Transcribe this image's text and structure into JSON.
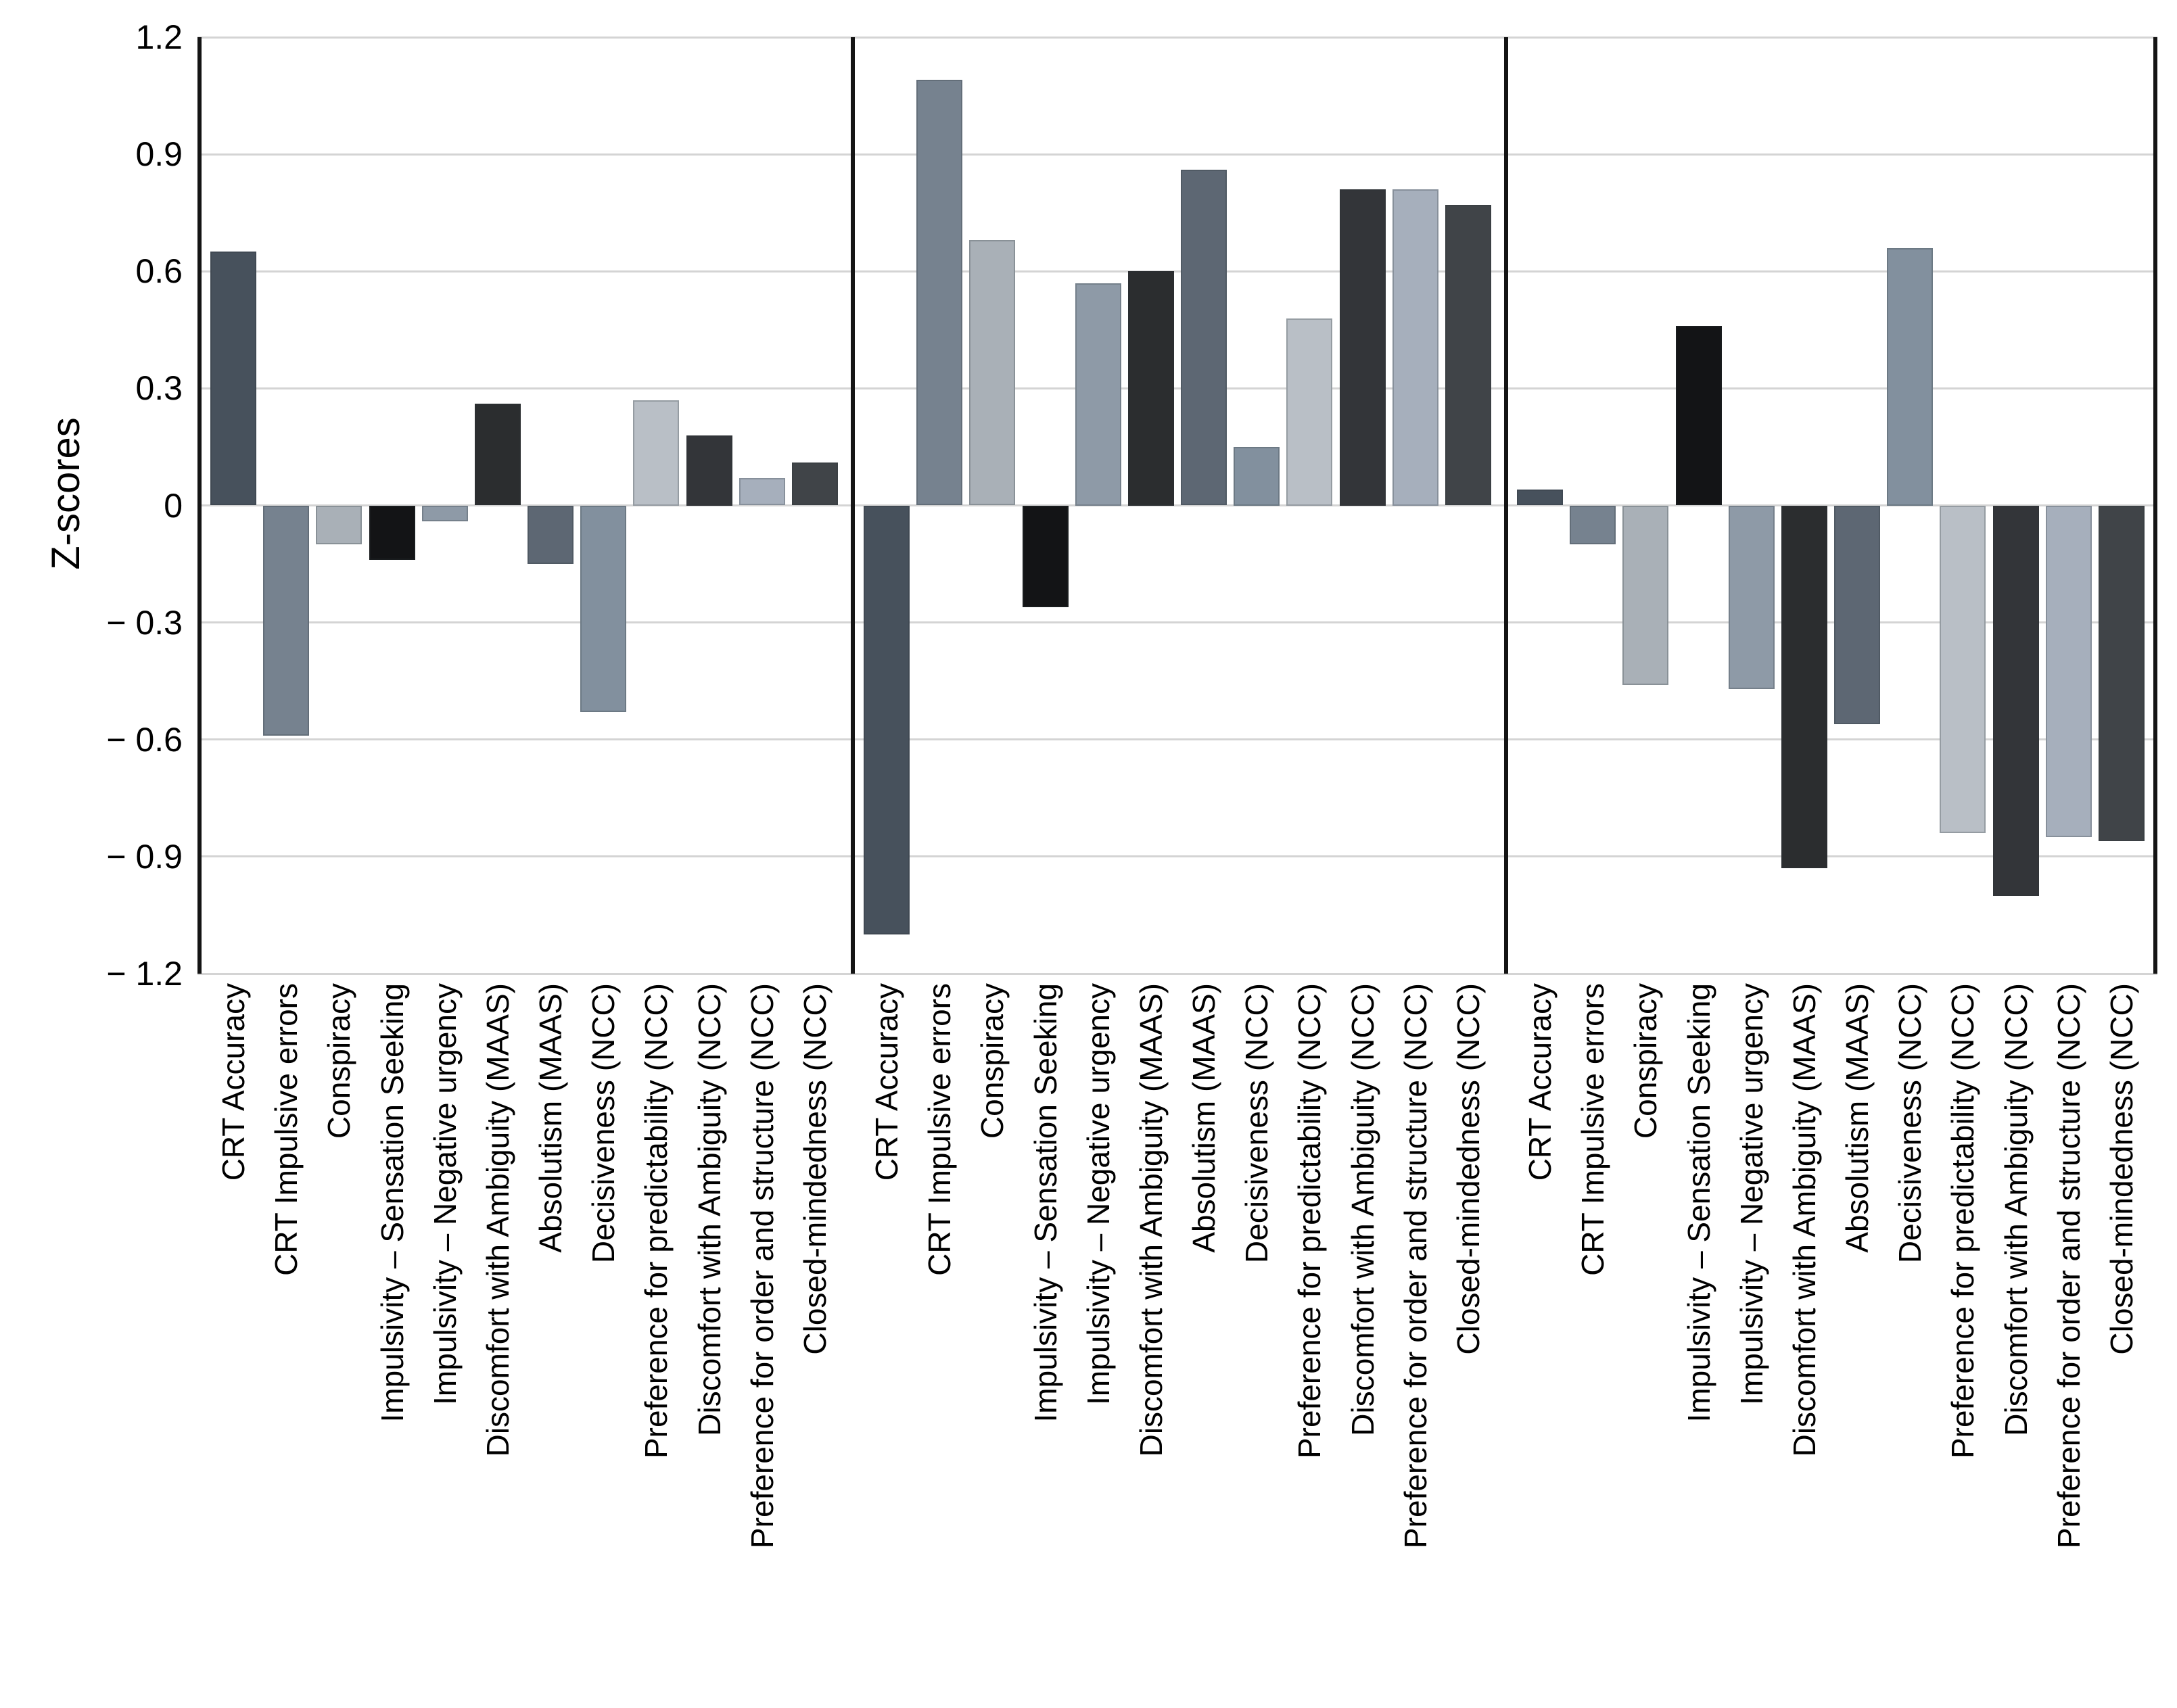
{
  "chart_data": {
    "type": "bar",
    "title": "",
    "xlabel": "",
    "ylabel": "Z-scores",
    "ylim": [
      -1.2,
      1.2
    ],
    "yticks": [
      1.2,
      0.9,
      0.6,
      0.3,
      0,
      -0.3,
      -0.6,
      -0.9,
      -1.2
    ],
    "ytick_labels": [
      "1.2",
      "0.9",
      "0.6",
      "0.3",
      "0",
      "− 0.3",
      "− 0.6",
      "− 0.9",
      "− 1.2"
    ],
    "grid": true,
    "legend_position": "none",
    "panel_divider_color": "#141414",
    "gridline_color": "#d4d4d4",
    "categories": [
      "CRT Accuracy",
      "CRT Impulsive errors",
      "Conspiracy",
      "Impulsivity – Sensation Seeking",
      "Impulsivity – Negative urgency",
      "Discomfort with Ambiguity (MAAS)",
      "Absolutism (MAAS)",
      "Decisiveness (NCC)",
      "Preference for predictability (NCC)",
      "Discomfort with Ambiguity (NCC)",
      "Preference for order and structure (NCC)",
      "Closed-mindedness (NCC)"
    ],
    "category_colors": [
      "#47515c",
      "#76828f",
      "#a9b0b7",
      "#131416",
      "#8e9aa7",
      "#2b2d2f",
      "#5d6773",
      "#82909e",
      "#b9bfc6",
      "#333539",
      "#a6afbc",
      "#404448"
    ],
    "series": [
      {
        "name": "panel_1",
        "values": [
          0.65,
          -0.59,
          -0.1,
          -0.14,
          -0.04,
          0.26,
          -0.15,
          -0.53,
          0.27,
          0.18,
          0.07,
          0.11
        ]
      },
      {
        "name": "panel_2",
        "values": [
          -1.1,
          1.09,
          0.68,
          -0.26,
          0.57,
          0.6,
          0.86,
          0.15,
          0.48,
          0.81,
          0.81,
          0.77
        ]
      },
      {
        "name": "panel_3",
        "values": [
          0.04,
          -0.1,
          -0.46,
          0.46,
          -0.47,
          -0.93,
          -0.56,
          0.66,
          -0.84,
          -1.0,
          -0.85,
          -0.86
        ]
      }
    ]
  }
}
